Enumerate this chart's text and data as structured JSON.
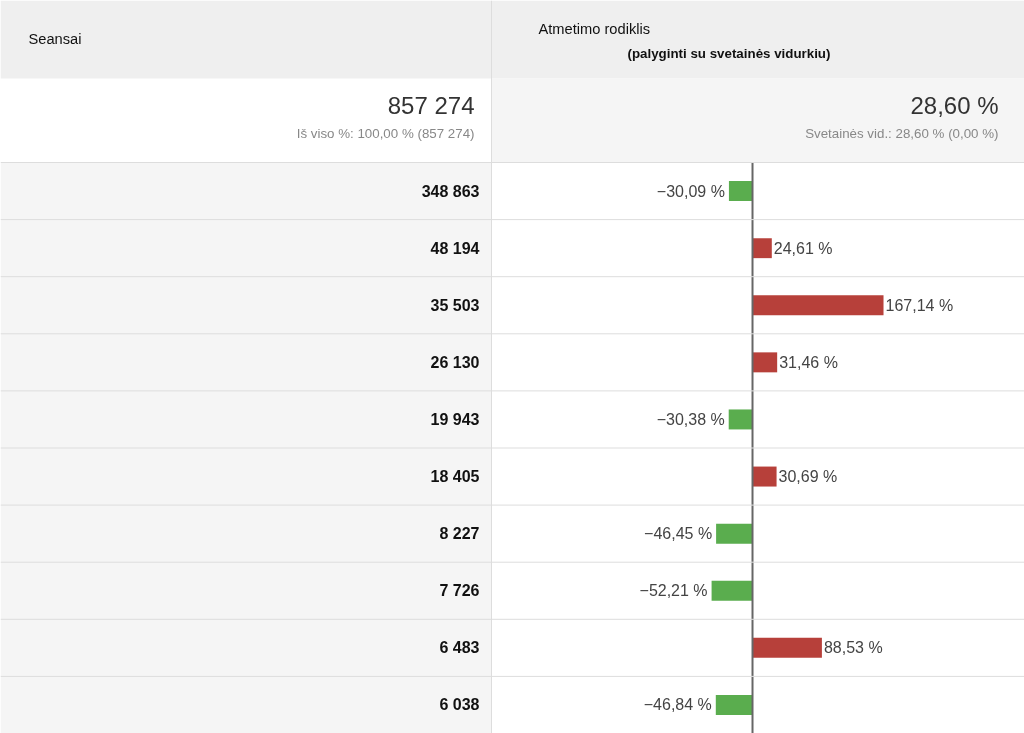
{
  "chart_data": {
    "type": "bar",
    "orientation": "horizontal",
    "title": "Atmetimo rodiklis",
    "subtitle": "(palyginti su svetainės vidurkiu)",
    "annotations": [
      "Seansai",
      "857 274",
      "Iš viso %: 100,00 % (857 274)",
      "28,60 %",
      "Svetainės vid.: 28,60 % (0,00 %)"
    ],
    "categories": [
      "348 863",
      "48 194",
      "35 503",
      "26 130",
      "19 943",
      "18 405",
      "8 227",
      "7 726",
      "6 483",
      "6 038"
    ],
    "values": [
      -30.09,
      24.61,
      167.14,
      31.46,
      -30.38,
      30.69,
      -46.45,
      -52.21,
      88.53,
      -46.84
    ],
    "value_labels": [
      "−30,09 %",
      "24,61 %",
      "167,14 %",
      "31,46 %",
      "−30,38 %",
      "30,69 %",
      "−46,45 %",
      "−52,21 %",
      "88,53 %",
      "−46,84 %"
    ],
    "colors": [
      "#5aad4e",
      "#b7403a",
      "#b7403a",
      "#b7403a",
      "#5aad4e",
      "#b7403a",
      "#5aad4e",
      "#5aad4e",
      "#b7403a",
      "#5aad4e"
    ],
    "xlim": [
      -333,
      347
    ],
    "ref_lines": [
      {
        "axis": "x",
        "value": 0,
        "color": "#666666"
      }
    ],
    "tick_labels": "y"
  }
}
